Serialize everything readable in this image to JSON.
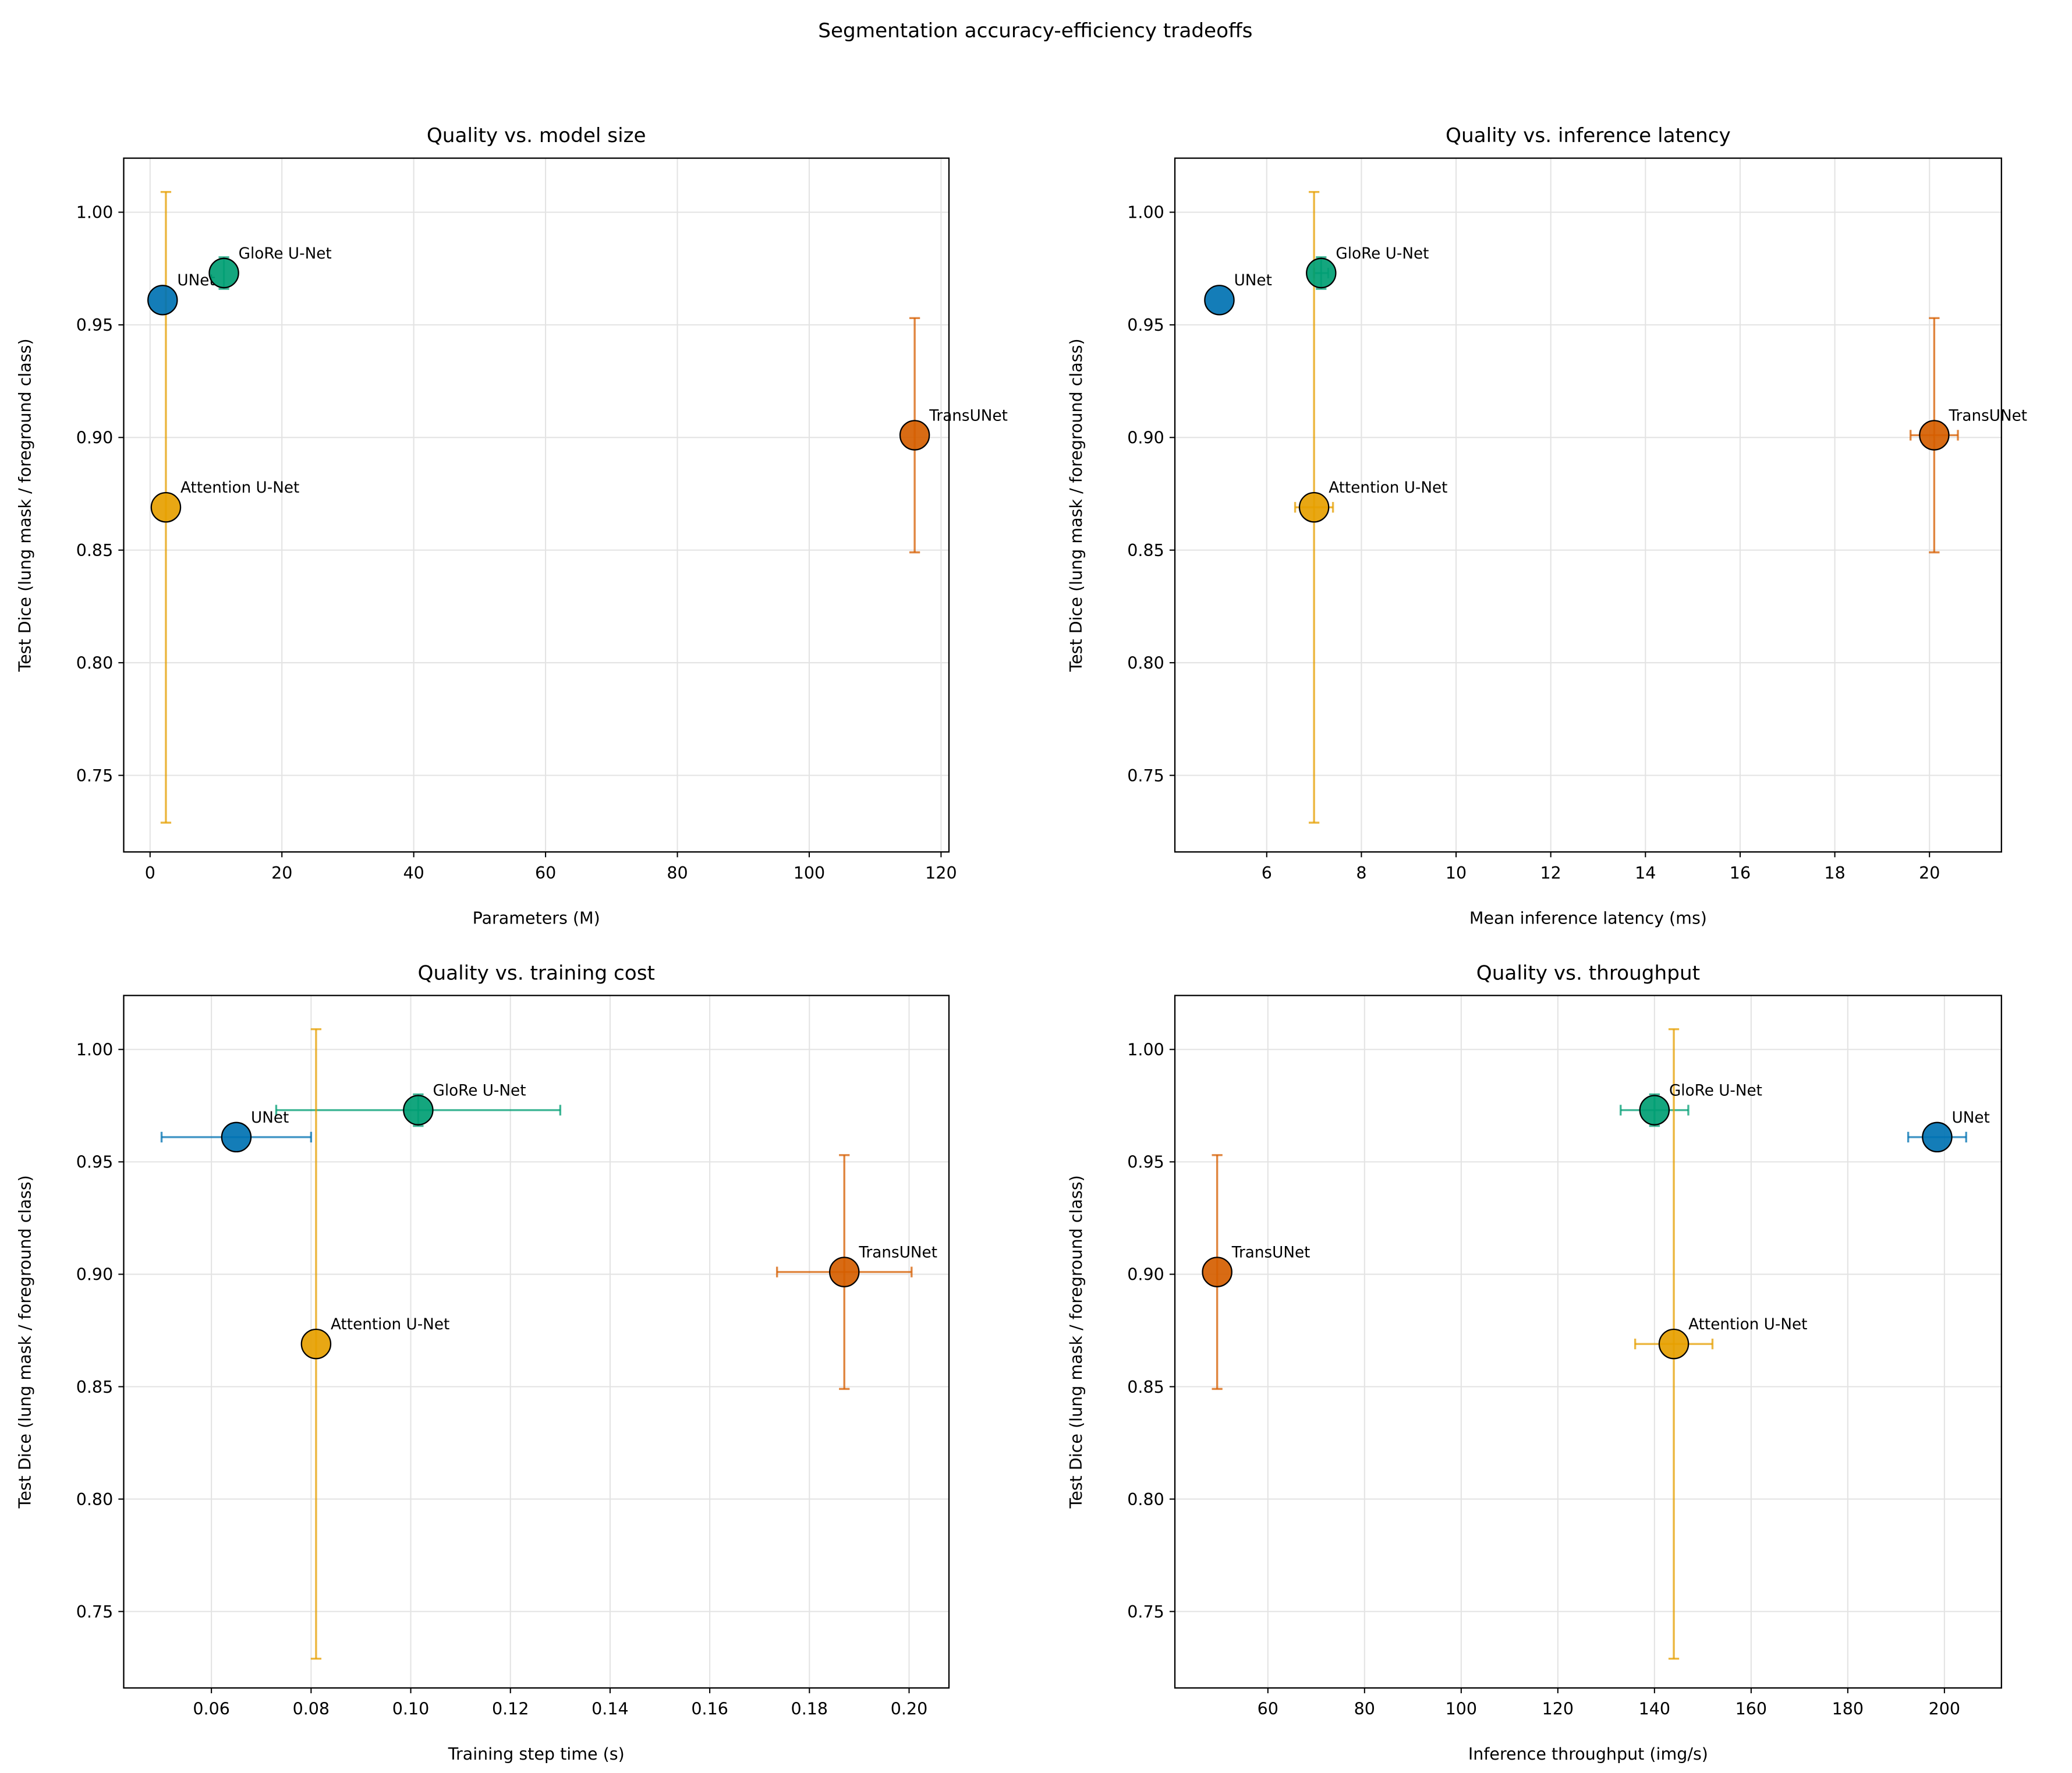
{
  "title": "Segmentation accuracy-efficiency tradeoffs",
  "chart_data": [
    {
      "type": "scatter",
      "title": "Quality vs. model size",
      "x_label": "Parameters (M)",
      "y_label": "Test Dice (lung mask / foreground class)",
      "xlim": [
        -4,
        121.2
      ],
      "ylim": [
        0.716,
        1.024
      ],
      "xticks": [
        0,
        20,
        40,
        60,
        80,
        100,
        120
      ],
      "yticks": [
        0.75,
        {
          "value": 0.8,
          "label": "0.80"
        },
        0.85,
        {
          "value": 0.9,
          "label": "0.90"
        },
        0.95,
        {
          "value": 1,
          "label": "1.00"
        }
      ],
      "grid": true,
      "series": [
        {
          "name": "UNet",
          "color": "#0072b2",
          "x": [
            1.9
          ],
          "y": [
            0.961
          ]
        },
        {
          "name": "GloRe U-Net",
          "color": "#009e73",
          "x": [
            11.2
          ],
          "y": [
            0.973
          ],
          "y_err": [
            0.007
          ]
        },
        {
          "name": "Attention U-Net",
          "color": "#e69f00",
          "x": [
            2.4
          ],
          "y": [
            0.869
          ],
          "y_err": [
            0.14
          ]
        },
        {
          "name": "TransUNet",
          "color": "#d55e00",
          "x": [
            116
          ],
          "y": [
            0.901
          ],
          "y_err": [
            0.052
          ]
        }
      ]
    },
    {
      "type": "scatter",
      "title": "Quality vs. inference latency",
      "x_label": "Mean inference latency (ms)",
      "y_label": "Test Dice (lung mask / foreground class)",
      "xlim": [
        4.06,
        21.52
      ],
      "ylim": [
        0.716,
        1.024
      ],
      "xticks": [
        6,
        8,
        10,
        12,
        14,
        16,
        18,
        20
      ],
      "yticks": [
        0.75,
        {
          "value": 0.8,
          "label": "0.80"
        },
        0.85,
        {
          "value": 0.9,
          "label": "0.90"
        },
        0.95,
        {
          "value": 1,
          "label": "1.00"
        }
      ],
      "grid": true,
      "series": [
        {
          "name": "UNet",
          "color": "#0072b2",
          "x": [
            5.0
          ],
          "y": [
            0.961
          ]
        },
        {
          "name": "GloRe U-Net",
          "color": "#009e73",
          "x": [
            7.15
          ],
          "y": [
            0.973
          ],
          "x_err": [
            0.15
          ],
          "y_err": [
            0.007
          ]
        },
        {
          "name": "Attention U-Net",
          "color": "#e69f00",
          "x": [
            7.0
          ],
          "y": [
            0.869
          ],
          "x_err": [
            0.4
          ],
          "y_err": [
            0.14
          ]
        },
        {
          "name": "TransUNet",
          "color": "#d55e00",
          "x": [
            20.1
          ],
          "y": [
            0.901
          ],
          "x_err": [
            0.5
          ],
          "y_err": [
            0.052
          ]
        }
      ]
    },
    {
      "type": "scatter",
      "title": "Quality vs. training cost",
      "x_label": "Training step time (s)",
      "y_label": "Test Dice (lung mask / foreground class)",
      "xlim": [
        0.0424,
        0.208
      ],
      "ylim": [
        0.716,
        1.024
      ],
      "xticks": [
        0.06,
        0.08,
        {
          "value": 0.1,
          "label": "0.10"
        },
        0.12,
        0.14,
        0.16,
        0.18,
        {
          "value": 0.2,
          "label": "0.20"
        }
      ],
      "yticks": [
        0.75,
        {
          "value": 0.8,
          "label": "0.80"
        },
        0.85,
        {
          "value": 0.9,
          "label": "0.90"
        },
        0.95,
        {
          "value": 1,
          "label": "1.00"
        }
      ],
      "grid": true,
      "series": [
        {
          "name": "UNet",
          "color": "#0072b2",
          "x": [
            0.065
          ],
          "y": [
            0.961
          ],
          "x_err": [
            0.015
          ]
        },
        {
          "name": "GloRe U-Net",
          "color": "#009e73",
          "x": [
            0.1015
          ],
          "y": [
            0.973
          ],
          "x_err": [
            0.0285
          ],
          "y_err": [
            0.007
          ]
        },
        {
          "name": "Attention U-Net",
          "color": "#e69f00",
          "x": [
            0.081
          ],
          "y": [
            0.869
          ],
          "y_err": [
            0.14
          ]
        },
        {
          "name": "TransUNet",
          "color": "#d55e00",
          "x": [
            0.187
          ],
          "y": [
            0.901
          ],
          "x_err": [
            0.0135
          ],
          "y_err": [
            0.052
          ]
        }
      ]
    },
    {
      "type": "scatter",
      "title": "Quality vs. throughput",
      "x_label": "Inference throughput (img/s)",
      "y_label": "Test Dice (lung mask / foreground class)",
      "xlim": [
        40.75,
        211.8
      ],
      "ylim": [
        0.716,
        1.024
      ],
      "xticks": [
        60,
        80,
        100,
        120,
        140,
        160,
        180,
        200
      ],
      "yticks": [
        0.75,
        {
          "value": 0.8,
          "label": "0.80"
        },
        0.85,
        {
          "value": 0.9,
          "label": "0.90"
        },
        0.95,
        {
          "value": 1,
          "label": "1.00"
        }
      ],
      "grid": true,
      "series": [
        {
          "name": "UNet",
          "color": "#0072b2",
          "x": [
            198.5
          ],
          "y": [
            0.961
          ],
          "x_err": [
            6
          ]
        },
        {
          "name": "GloRe U-Net",
          "color": "#009e73",
          "x": [
            140
          ],
          "y": [
            0.973
          ],
          "x_err": [
            7
          ],
          "y_err": [
            0.007
          ]
        },
        {
          "name": "Attention U-Net",
          "color": "#e69f00",
          "x": [
            144
          ],
          "y": [
            0.869
          ],
          "x_err": [
            8
          ],
          "y_err": [
            0.14
          ]
        },
        {
          "name": "TransUNet",
          "color": "#d55e00",
          "x": [
            49.5
          ],
          "y": [
            0.901
          ],
          "y_err": [
            0.052
          ]
        }
      ]
    }
  ]
}
